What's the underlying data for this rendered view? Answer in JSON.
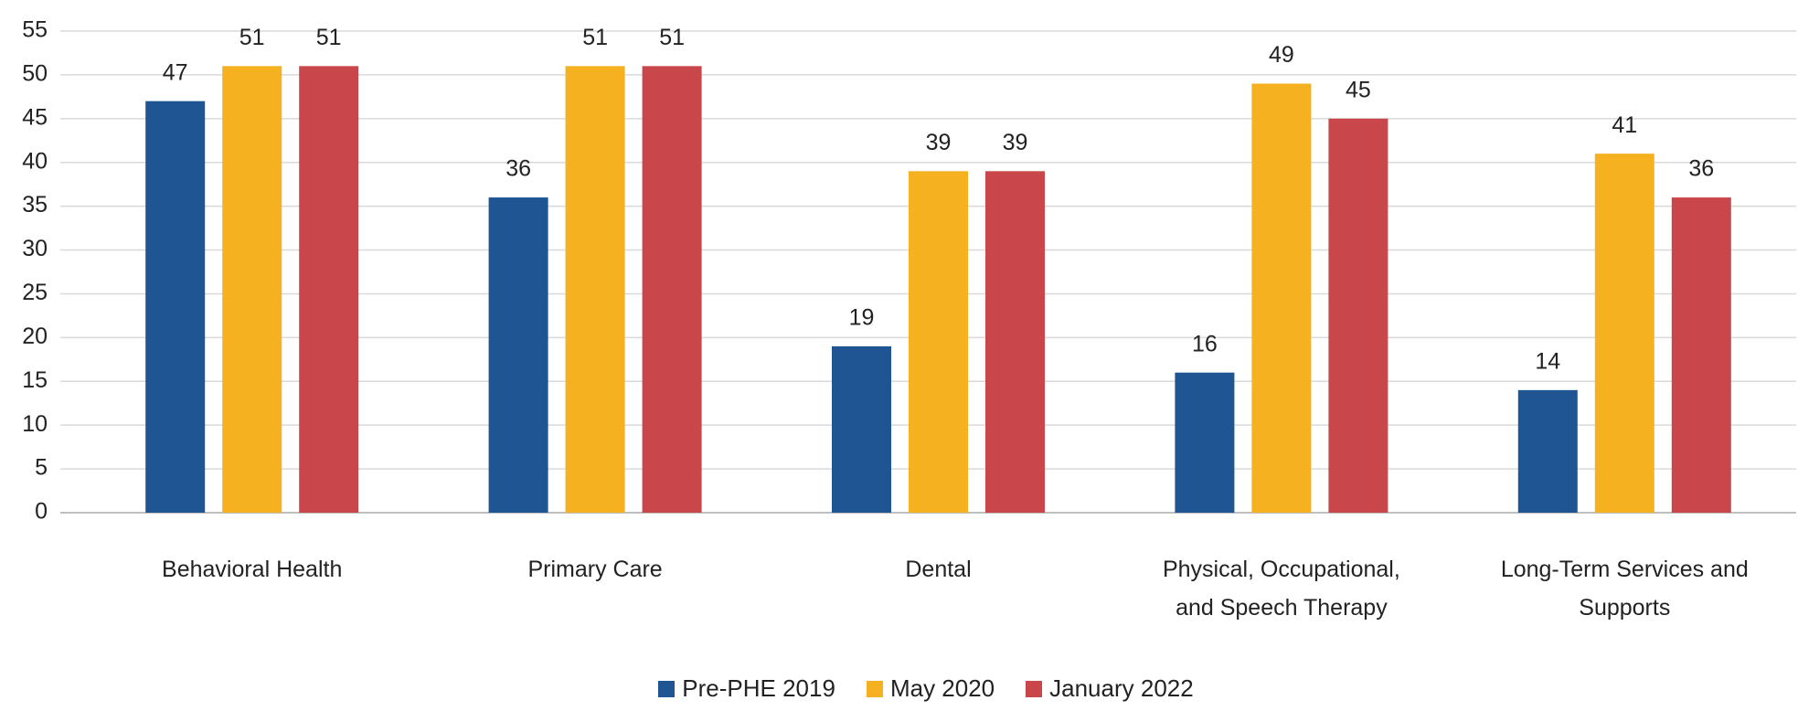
{
  "chart_data": {
    "type": "bar",
    "categories": [
      "Behavioral Health",
      "Primary Care",
      "Dental",
      "Physical, Occupational,\nand Speech Therapy",
      "Long-Term Services and\nSupports"
    ],
    "series": [
      {
        "name": "Pre-PHE 2019",
        "color": "#1f5592",
        "values": [
          47,
          36,
          19,
          16,
          14
        ]
      },
      {
        "name": "May 2020",
        "color": "#f5b120",
        "values": [
          51,
          51,
          39,
          49,
          41
        ]
      },
      {
        "name": "January 2022",
        "color": "#c9474a",
        "values": [
          51,
          51,
          39,
          45,
          36
        ]
      }
    ],
    "ylim": [
      0,
      55
    ],
    "yticks": [
      0,
      5,
      10,
      15,
      20,
      25,
      30,
      35,
      40,
      45,
      50,
      55
    ],
    "grid": true,
    "legend": "bottom"
  }
}
